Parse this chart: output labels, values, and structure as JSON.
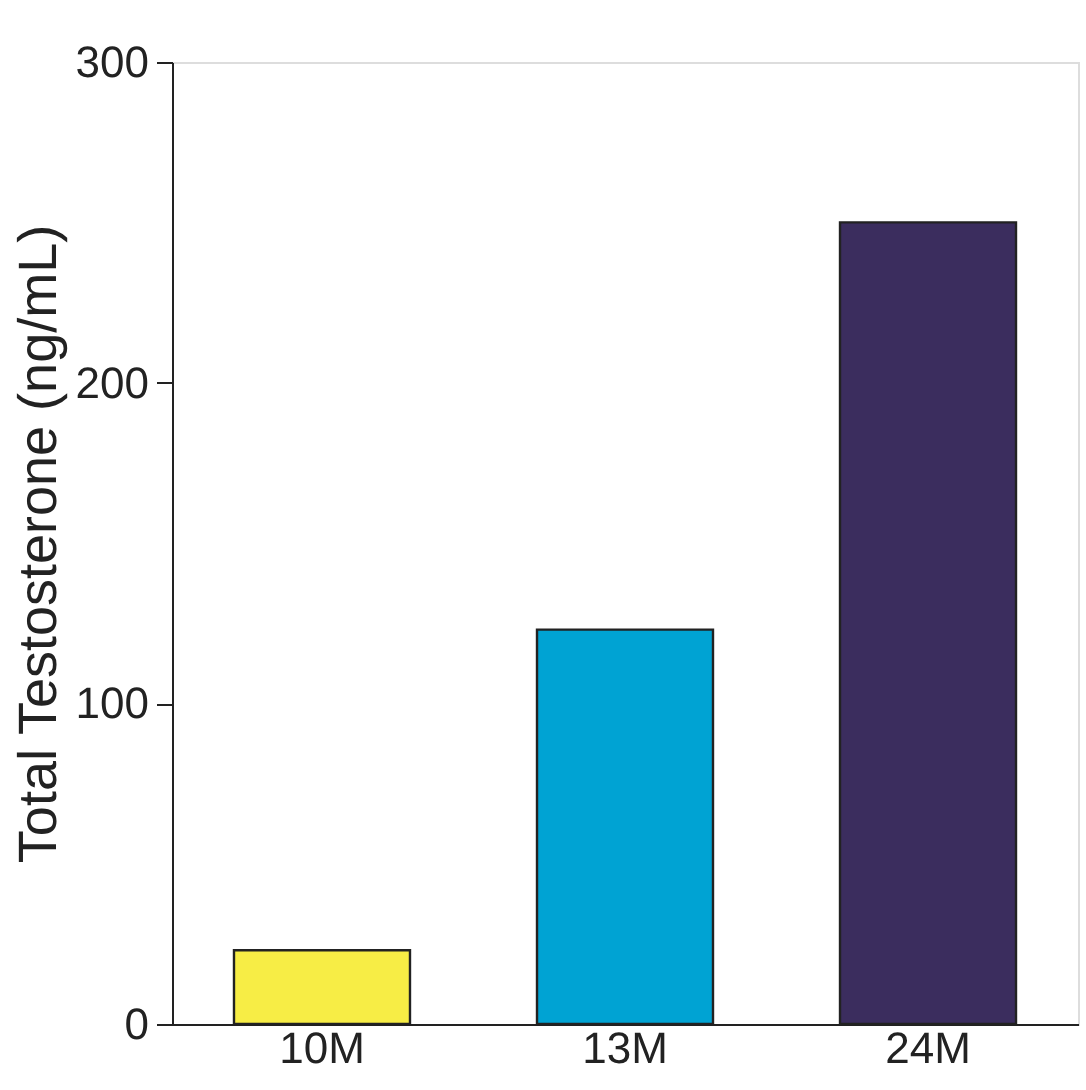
{
  "chart_data": {
    "type": "bar",
    "ylabel": "Total Testosterone (ng/mL)",
    "categories": [
      "10M",
      "13M",
      "24M"
    ],
    "values": [
      23,
      123,
      250
    ],
    "colors": [
      "#f7ed45",
      "#00a3d3",
      "#3b2d5e"
    ],
    "ylim": [
      0,
      300
    ],
    "yticks": [
      0,
      100,
      200,
      300
    ],
    "grid": false
  }
}
